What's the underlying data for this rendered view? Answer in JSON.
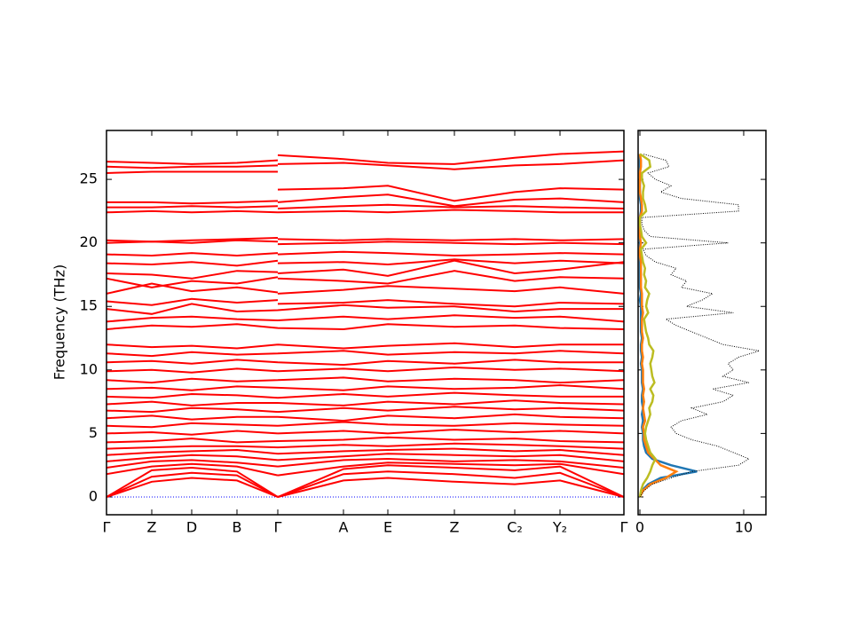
{
  "chart_data": [
    {
      "type": "band-structure",
      "ylabel": "Frequency (THz)",
      "color": "#ff0000",
      "zero_line_color": "#0000ff",
      "x": [
        0,
        0.51,
        0.96,
        1.47,
        1.93,
        1.93,
        1.93,
        2.67,
        3.17,
        3.92,
        4.6,
        5.11,
        5.83
      ],
      "xlim": [
        0,
        5.83
      ],
      "xticks": [
        {
          "value": 0,
          "label": "Γ"
        },
        {
          "value": 0.51,
          "label": "Z"
        },
        {
          "value": 0.96,
          "label": "D"
        },
        {
          "value": 1.47,
          "label": "B"
        },
        {
          "value": 1.93,
          "label": "Γ"
        },
        {
          "value": 2.67,
          "label": "A"
        },
        {
          "value": 3.17,
          "label": "E"
        },
        {
          "value": 3.92,
          "label": "Z"
        },
        {
          "value": 4.6,
          "label": "C₂"
        },
        {
          "value": 5.11,
          "label": "Y₂"
        },
        {
          "value": 5.83,
          "label": "Γ"
        }
      ],
      "ylim": [
        -1.4,
        28.85
      ],
      "yticks": [
        0,
        5,
        10,
        15,
        20,
        25
      ],
      "series": [
        {
          "values": [
            0,
            1.2,
            1.5,
            1.3,
            0,
            null,
            0,
            1.3,
            1.5,
            1.2,
            1.0,
            1.3,
            0
          ]
        },
        {
          "values": [
            0,
            1.6,
            1.9,
            1.7,
            0,
            null,
            0,
            1.8,
            2.0,
            1.8,
            1.5,
            1.9,
            0
          ]
        },
        {
          "values": [
            0,
            2.1,
            2.3,
            2.0,
            0,
            null,
            0,
            2.2,
            2.5,
            2.3,
            2.1,
            2.4,
            0
          ]
        },
        {
          "values": [
            1.8,
            2.4,
            2.6,
            2.4,
            1.7,
            null,
            1.7,
            2.4,
            2.7,
            2.6,
            2.5,
            2.6,
            1.8
          ]
        },
        {
          "values": [
            2.3,
            2.8,
            2.9,
            2.7,
            2.4,
            null,
            2.4,
            2.9,
            3.0,
            2.8,
            2.9,
            2.8,
            2.3
          ]
        },
        {
          "values": [
            2.8,
            3.1,
            3.3,
            3.2,
            2.9,
            null,
            2.9,
            3.2,
            3.4,
            3.3,
            3.2,
            3.3,
            2.8
          ]
        },
        {
          "values": [
            3.3,
            3.5,
            3.6,
            3.7,
            3.4,
            null,
            3.4,
            3.6,
            3.7,
            3.8,
            3.6,
            3.7,
            3.3
          ]
        },
        {
          "values": [
            3.8,
            3.9,
            4.0,
            4.0,
            3.9,
            null,
            3.9,
            4.1,
            4.0,
            4.2,
            4.1,
            4.0,
            3.8
          ]
        },
        {
          "values": [
            4.3,
            4.4,
            4.6,
            4.3,
            4.4,
            null,
            4.4,
            4.5,
            4.7,
            4.5,
            4.6,
            4.4,
            4.3
          ]
        },
        {
          "values": [
            5.0,
            5.1,
            4.9,
            5.2,
            5.0,
            null,
            5.0,
            5.2,
            5.0,
            5.3,
            5.1,
            5.2,
            5.0
          ]
        },
        {
          "values": [
            5.6,
            5.5,
            5.8,
            5.7,
            5.6,
            null,
            5.6,
            5.9,
            5.7,
            5.6,
            5.8,
            5.7,
            5.6
          ]
        },
        {
          "values": [
            6.2,
            6.4,
            6.1,
            6.3,
            6.3,
            null,
            6.3,
            6.0,
            6.4,
            6.2,
            6.5,
            6.3,
            6.2
          ]
        },
        {
          "values": [
            6.8,
            6.7,
            7.0,
            6.9,
            6.7,
            null,
            6.7,
            7.0,
            6.8,
            7.1,
            6.9,
            7.0,
            6.8
          ]
        },
        {
          "values": [
            7.3,
            7.5,
            7.2,
            7.4,
            7.4,
            null,
            7.4,
            7.2,
            7.5,
            7.3,
            7.6,
            7.4,
            7.3
          ]
        },
        {
          "values": [
            7.9,
            7.8,
            8.1,
            8.0,
            7.8,
            null,
            7.8,
            8.1,
            7.9,
            8.2,
            8.0,
            7.9,
            7.9
          ]
        },
        {
          "values": [
            8.5,
            8.6,
            8.4,
            8.7,
            8.6,
            null,
            8.6,
            8.4,
            8.7,
            8.5,
            8.6,
            8.8,
            8.5
          ]
        },
        {
          "values": [
            9.2,
            9.0,
            9.3,
            9.1,
            9.2,
            null,
            9.2,
            9.4,
            9.1,
            9.3,
            9.2,
            9.0,
            9.2
          ]
        },
        {
          "values": [
            9.9,
            10.0,
            9.8,
            10.1,
            9.9,
            null,
            9.9,
            10.1,
            9.9,
            10.2,
            10.0,
            10.1,
            9.9
          ]
        },
        {
          "values": [
            10.6,
            10.7,
            10.5,
            10.8,
            10.6,
            null,
            10.6,
            10.4,
            10.7,
            10.5,
            10.8,
            10.6,
            10.6
          ]
        },
        {
          "values": [
            11.3,
            11.1,
            11.4,
            11.2,
            11.3,
            null,
            11.3,
            11.5,
            11.2,
            11.4,
            11.3,
            11.5,
            11.3
          ]
        },
        {
          "values": [
            12.0,
            11.8,
            11.9,
            11.7,
            12.0,
            null,
            12.0,
            11.7,
            11.9,
            12.1,
            11.8,
            12.0,
            12.0
          ]
        },
        {
          "values": [
            13.2,
            13.5,
            13.4,
            13.6,
            13.3,
            null,
            13.3,
            13.2,
            13.6,
            13.4,
            13.5,
            13.3,
            13.2
          ]
        },
        {
          "values": [
            13.8,
            14.1,
            14.2,
            14.0,
            13.9,
            null,
            13.9,
            14.2,
            14.0,
            14.3,
            14.1,
            14.2,
            13.8
          ]
        },
        {
          "values": [
            14.8,
            14.4,
            15.2,
            14.6,
            14.7,
            null,
            14.7,
            15.1,
            14.9,
            15.0,
            14.6,
            14.8,
            14.8
          ]
        },
        {
          "values": [
            15.4,
            15.1,
            15.6,
            15.3,
            15.5,
            null,
            15.2,
            15.3,
            15.5,
            15.2,
            15.0,
            15.3,
            15.2
          ]
        },
        {
          "values": [
            16.0,
            16.8,
            16.2,
            16.5,
            16.1,
            null,
            16.0,
            16.3,
            16.6,
            16.4,
            16.2,
            16.5,
            16.0
          ]
        },
        {
          "values": [
            17.2,
            16.5,
            17.0,
            16.8,
            17.3,
            null,
            17.2,
            17.0,
            16.8,
            17.8,
            17.0,
            17.3,
            17.2
          ]
        },
        {
          "values": [
            17.6,
            17.5,
            17.2,
            17.8,
            17.7,
            null,
            17.6,
            17.9,
            17.4,
            18.6,
            17.6,
            17.9,
            18.5
          ]
        },
        {
          "values": [
            18.4,
            18.3,
            18.5,
            18.2,
            18.6,
            null,
            18.4,
            18.5,
            18.3,
            18.7,
            18.4,
            18.6,
            18.4
          ]
        },
        {
          "values": [
            19.1,
            19.0,
            19.2,
            19.0,
            19.2,
            null,
            19.1,
            19.3,
            19.2,
            19.0,
            19.1,
            19.2,
            19.1
          ]
        },
        {
          "values": [
            20.0,
            20.1,
            20.0,
            20.2,
            20.1,
            null,
            19.9,
            20.0,
            20.1,
            20.0,
            19.9,
            20.0,
            19.9
          ]
        },
        {
          "values": [
            20.2,
            20.1,
            20.2,
            20.3,
            20.4,
            null,
            20.3,
            20.2,
            20.3,
            20.2,
            20.3,
            20.2,
            20.3
          ]
        },
        {
          "values": [
            22.4,
            22.5,
            22.4,
            22.5,
            22.4,
            null,
            22.4,
            22.5,
            22.4,
            22.6,
            22.5,
            22.4,
            22.4
          ]
        },
        {
          "values": [
            22.8,
            22.8,
            22.9,
            22.8,
            22.9,
            null,
            22.7,
            22.9,
            23.0,
            22.8,
            22.9,
            22.8,
            22.7
          ]
        },
        {
          "values": [
            23.2,
            23.2,
            23.1,
            23.2,
            23.3,
            null,
            23.2,
            23.6,
            23.8,
            22.9,
            23.4,
            23.5,
            23.2
          ]
        },
        {
          "values": [
            25.5,
            25.6,
            25.6,
            25.6,
            25.6,
            null,
            24.2,
            24.3,
            24.5,
            23.3,
            24.0,
            24.3,
            24.2
          ]
        },
        {
          "values": [
            26.0,
            25.9,
            26.0,
            26.0,
            26.1,
            null,
            26.2,
            26.3,
            26.1,
            25.8,
            26.1,
            26.2,
            26.5
          ]
        },
        {
          "values": [
            26.4,
            26.3,
            26.2,
            26.3,
            26.5,
            null,
            26.9,
            26.6,
            26.3,
            26.2,
            26.7,
            27.0,
            27.2
          ]
        }
      ]
    },
    {
      "type": "dos",
      "frequencies": [
        0,
        0.5,
        1,
        1.5,
        2,
        2.5,
        3,
        3.5,
        4,
        4.5,
        5,
        5.5,
        6,
        6.5,
        7,
        7.5,
        8,
        8.5,
        9,
        9.5,
        10,
        10.5,
        11,
        11.5,
        12,
        12.5,
        13,
        13.5,
        14,
        14.5,
        15,
        15.5,
        16,
        16.5,
        17,
        17.5,
        18,
        18.5,
        19,
        19.5,
        20,
        20.5,
        21,
        21.5,
        22,
        22.5,
        23,
        23.5,
        24,
        24.5,
        25,
        25.5,
        26,
        26.5,
        27
      ],
      "xlim": [
        -0.17,
        12.14
      ],
      "xticks": [
        0,
        10
      ],
      "ylim": [
        -1.4,
        28.85
      ],
      "yticks": [
        0,
        5,
        10,
        15,
        20,
        25
      ],
      "series": [
        {
          "color": "#000000",
          "style": "dotted",
          "values": [
            0,
            0.4,
            1.2,
            3.0,
            5.0,
            9.5,
            10.5,
            9.0,
            7.5,
            5.0,
            3.5,
            3.0,
            4.0,
            6.5,
            5.0,
            8.0,
            9.0,
            7.0,
            10.5,
            8.0,
            9.0,
            8.5,
            9.5,
            11.5,
            8.0,
            6.5,
            5.0,
            3.5,
            2.5,
            9.0,
            4.5,
            6.0,
            7.0,
            4.0,
            4.5,
            3.0,
            3.5,
            1.5,
            0.6,
            0.3,
            8.5,
            1.0,
            0.4,
            0.2,
            0.2,
            9.5,
            9.5,
            4.0,
            2.0,
            3.0,
            1.5,
            0.8,
            2.8,
            2.5,
            0.3
          ]
        },
        {
          "color": "#1f77b4",
          "style": "solid",
          "values": [
            0,
            0.2,
            0.8,
            2.0,
            5.5,
            3.0,
            1.2,
            0.6,
            0.4,
            0.3,
            0.3,
            0.2,
            0.3,
            0.2,
            0.3,
            0.2,
            0.2,
            0.3,
            0.2,
            0.2,
            0.2,
            0.1,
            0.2,
            0.1,
            0.1,
            0.2,
            0.1,
            0.1,
            0.1,
            0.1,
            0.1,
            0,
            0.1,
            0,
            0,
            0,
            0,
            0,
            0,
            0,
            0,
            0,
            0,
            0,
            0,
            0.1,
            0.1,
            0,
            0,
            0,
            0,
            0,
            0,
            0,
            0
          ]
        },
        {
          "color": "#ff7f0e",
          "style": "solid",
          "values": [
            0,
            0.3,
            1.0,
            2.5,
            3.5,
            2.0,
            1.4,
            0.8,
            0.6,
            0.4,
            0.4,
            0.3,
            0.5,
            0.4,
            0.3,
            0.4,
            0.3,
            0.4,
            0.3,
            0.3,
            0.3,
            0.2,
            0.3,
            0.2,
            0.2,
            0.3,
            0.2,
            0.2,
            0.2,
            0.3,
            0.2,
            0.2,
            0.2,
            0.1,
            0.1,
            0.1,
            0.1,
            0.1,
            0,
            0,
            0.1,
            0,
            0,
            0,
            0,
            0.2,
            0.2,
            0.1,
            0,
            0,
            0,
            0,
            0.1,
            0.1,
            0
          ]
        },
        {
          "color": "#bcbd22",
          "style": "solid",
          "values": [
            0,
            0.1,
            0.3,
            0.7,
            1.0,
            1.2,
            1.5,
            1.0,
            0.8,
            0.6,
            0.5,
            0.6,
            0.8,
            1.0,
            0.9,
            1.2,
            1.3,
            1.0,
            1.4,
            1.2,
            1.1,
            1.0,
            1.2,
            1.3,
            0.9,
            0.8,
            0.6,
            0.5,
            0.4,
            0.8,
            0.6,
            0.7,
            0.9,
            0.5,
            0.6,
            0.4,
            0.5,
            0.3,
            0.2,
            0.1,
            0.6,
            0.2,
            0.1,
            0,
            0,
            0.6,
            0.5,
            0.3,
            0.3,
            0.4,
            0.2,
            0.2,
            1.0,
            0.9,
            0
          ]
        }
      ]
    }
  ]
}
